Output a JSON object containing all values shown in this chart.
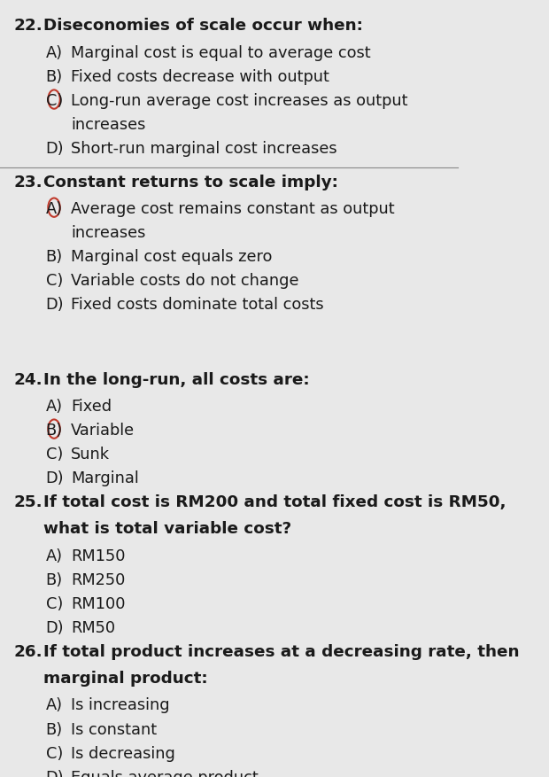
{
  "bg_color": "#e8e8e8",
  "text_color": "#1a1a1a",
  "circle_color": "#c0392b",
  "divider_color": "#888888",
  "questions": [
    {
      "number": "22.",
      "question_bold": "Diseconomies of scale occur when:",
      "options": [
        {
          "label": "A)",
          "text": "Marginal cost is equal to average cost",
          "circle": false
        },
        {
          "label": "B)",
          "text": "Fixed costs decrease with output",
          "circle": false
        },
        {
          "label": "C)",
          "text": "Long-run average cost increases as output\nincreases",
          "circle": true
        },
        {
          "label": "D)",
          "text": "Short-run marginal cost increases",
          "circle": false
        }
      ],
      "divider_after": true
    },
    {
      "number": "23.",
      "question_bold": "Constant returns to scale imply:",
      "options": [
        {
          "label": "A)",
          "text": "Average cost remains constant as output\nincreases",
          "circle": true
        },
        {
          "label": "B)",
          "text": "Marginal cost equals zero",
          "circle": false
        },
        {
          "label": "C)",
          "text": "Variable costs do not change",
          "circle": false
        },
        {
          "label": "D)",
          "text": "Fixed costs dominate total costs",
          "circle": false
        }
      ],
      "divider_after": false,
      "extra_space_after": true
    },
    {
      "number": "24.",
      "question_bold": "In the long-run, all costs are:",
      "options": [
        {
          "label": "A)",
          "text": "Fixed",
          "circle": false
        },
        {
          "label": "B)",
          "text": "Variable",
          "circle": true
        },
        {
          "label": "C)",
          "text": "Sunk",
          "circle": false
        },
        {
          "label": "D)",
          "text": "Marginal",
          "circle": false
        }
      ],
      "divider_after": false
    },
    {
      "number": "25.",
      "question_bold": "If total cost is RM200 and total fixed cost is RM50,\nwhat is total variable cost?",
      "options": [
        {
          "label": "A)",
          "text": "RM150",
          "circle": false
        },
        {
          "label": "B)",
          "text": "RM250",
          "circle": false
        },
        {
          "label": "C)",
          "text": "RM100",
          "circle": false
        },
        {
          "label": "D)",
          "text": "RM50",
          "circle": false
        }
      ],
      "divider_after": false
    },
    {
      "number": "26.",
      "question_bold": "If total product increases at a decreasing rate, then\nmarginal product:",
      "options": [
        {
          "label": "A)",
          "text": "Is increasing",
          "circle": false
        },
        {
          "label": "B)",
          "text": "Is constant",
          "circle": false
        },
        {
          "label": "C)",
          "text": "Is decreasing",
          "circle": false
        },
        {
          "label": "D)",
          "text": "Equals average product",
          "circle": false
        }
      ],
      "divider_after": false
    }
  ],
  "font_size_question": 13.2,
  "font_size_option": 12.8,
  "indent_number": 0.03,
  "indent_option": 0.1,
  "figsize": [
    6.2,
    8.78
  ],
  "dpi": 100
}
